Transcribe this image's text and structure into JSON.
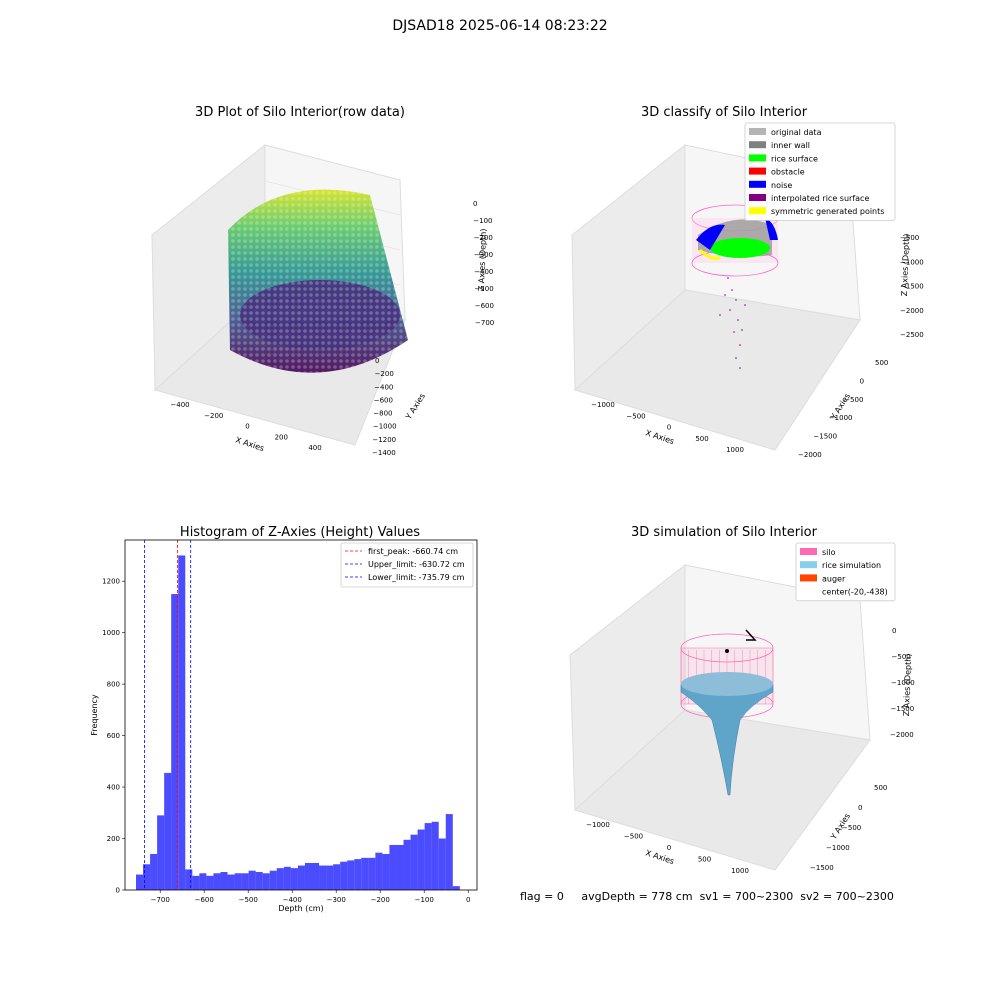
{
  "suptitle": "DJSAD18 2025-06-14 08:23:22",
  "panels": {
    "raw": {
      "title": "3D Plot of Silo Interior(row data)",
      "xlabel": "X Axies",
      "ylabel": "Y Axies",
      "zlabel": "Z Axies (Depth)",
      "xticks": [
        "−400",
        "−200",
        "0",
        "200",
        "400"
      ],
      "yticks": [
        "0",
        "−200",
        "−400",
        "−600",
        "−800",
        "−1000",
        "−1200",
        "−1400"
      ],
      "zticks": [
        "0",
        "−100",
        "−200",
        "−300",
        "−400",
        "−500",
        "−600",
        "−700"
      ]
    },
    "classify": {
      "title": "3D classify of Silo Interior",
      "xlabel": "X Axies",
      "ylabel": "Y Axies",
      "zlabel": "Z Axies (Depth)",
      "xticks": [
        "−1000",
        "−500",
        "0",
        "500",
        "1000"
      ],
      "yticks": [
        "500",
        "0",
        "−500",
        "−1000",
        "−1500",
        "−2000"
      ],
      "zticks": [
        "−500",
        "−1000",
        "−1500",
        "−2000",
        "−2500"
      ],
      "legend": [
        {
          "label": "original data",
          "color": "#b4b4b4"
        },
        {
          "label": "inner wall",
          "color": "#808080"
        },
        {
          "label": "rice surface",
          "color": "#00ff00"
        },
        {
          "label": "obstacle",
          "color": "#ff0000"
        },
        {
          "label": "noise",
          "color": "#0000ff"
        },
        {
          "label": "interpolated rice surface",
          "color": "#800080"
        },
        {
          "label": "symmetric generated points",
          "color": "#ffff00"
        }
      ]
    },
    "simulation": {
      "title": "3D simulation of Silo Interior",
      "xlabel": "X Axies",
      "ylabel": "Y Axies",
      "zlabel": "Z Axies (Depth)",
      "xticks": [
        "−1000",
        "−500",
        "0",
        "500",
        "1000"
      ],
      "yticks": [
        "500",
        "0",
        "−500",
        "−1000",
        "−1500"
      ],
      "zticks": [
        "0",
        "−500",
        "−1000",
        "−1500",
        "−2000"
      ],
      "legend": [
        {
          "label": "silo",
          "color": "#ff69b4"
        },
        {
          "label": "rice simulation",
          "color": "#87ceeb"
        },
        {
          "label": "auger",
          "color": "#ff4500"
        },
        {
          "label": "center(-20,-438)",
          "color": ""
        }
      ]
    }
  },
  "status": {
    "flag": "flag = 0",
    "avg": "avgDepth = 778 cm",
    "sv1": "sv1 = 700~2300",
    "sv2": "sv2 = 700~2300"
  },
  "chart_data": {
    "type": "bar",
    "title": "Histogram of Z-Axies (Height) Values",
    "xlabel": "Depth (cm)",
    "ylabel": "Frequency",
    "xlim": [
      -780,
      20
    ],
    "ylim": [
      0,
      1360
    ],
    "xticks": [
      -700,
      -600,
      -500,
      -400,
      -300,
      -200,
      -100,
      0
    ],
    "yticks": [
      0,
      200,
      400,
      600,
      800,
      1000,
      1200
    ],
    "bin_width": 16,
    "bin_start": -755,
    "values": [
      60,
      100,
      140,
      290,
      455,
      1150,
      1300,
      80,
      55,
      65,
      55,
      65,
      70,
      60,
      65,
      65,
      75,
      70,
      65,
      75,
      85,
      90,
      85,
      95,
      105,
      105,
      95,
      95,
      100,
      110,
      115,
      120,
      125,
      125,
      145,
      140,
      175,
      175,
      195,
      215,
      235,
      260,
      265,
      200,
      295,
      15
    ],
    "bar_color": "#0000ff",
    "vlines": [
      {
        "label": "first_peak: -660.74 cm",
        "x": -660.74,
        "color": "#ff0000"
      },
      {
        "label": "Upper_limit: -630.72 cm",
        "x": -630.72,
        "color": "#0000ff"
      },
      {
        "label": "Lower_limit: -735.79 cm",
        "x": -735.79,
        "color": "#0000ff"
      }
    ],
    "legend_position": "upper right",
    "grid": false
  }
}
